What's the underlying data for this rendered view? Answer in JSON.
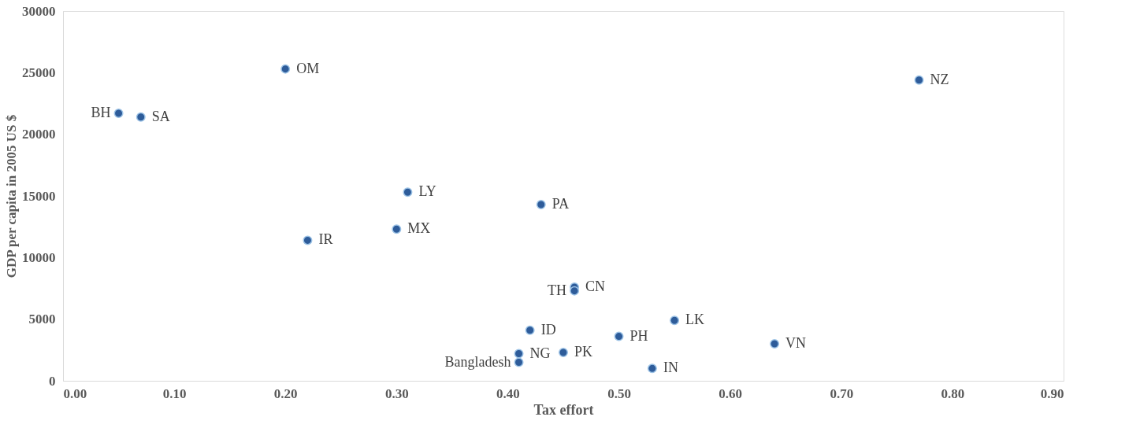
{
  "chart_data": {
    "type": "scatter",
    "xlabel": "Tax effort",
    "ylabel": "GDP per capita in 2005 US $",
    "x": [
      0.05,
      0.07,
      0.2,
      0.77,
      0.31,
      0.43,
      0.3,
      0.22,
      0.46,
      0.46,
      0.55,
      0.42,
      0.5,
      0.64,
      0.41,
      0.45,
      0.41,
      0.53
    ],
    "series": [
      {
        "color": "#2e5c9a",
        "values": [
          21700,
          21400,
          25300,
          24400,
          15300,
          14300,
          12300,
          11400,
          7600,
          7300,
          4900,
          4100,
          3600,
          3000,
          2200,
          2300,
          1500,
          1000
        ]
      }
    ],
    "marker": "circle",
    "grid": false,
    "xlim": [
      0,
      0.9
    ],
    "xticks": [
      {
        "value": 0,
        "label": "0.00"
      },
      {
        "value": 0.1,
        "label": "0.10"
      },
      {
        "value": 0.2,
        "label": "0.20"
      },
      {
        "value": 0.3,
        "label": "0.30"
      },
      {
        "value": 0.4,
        "label": "0.40"
      },
      {
        "value": 0.5,
        "label": "0.50"
      },
      {
        "value": 0.6,
        "label": "0.60"
      },
      {
        "value": 0.7,
        "label": "0.70"
      },
      {
        "value": 0.8,
        "label": "0.80"
      },
      {
        "value": 0.9,
        "label": "0.90"
      }
    ],
    "ylim": [
      0,
      30000
    ],
    "yticks": [
      0,
      5000,
      10000,
      15000,
      20000,
      25000,
      30000
    ],
    "annotations": [
      {
        "text": "BH",
        "x": 0.05,
        "y": 21700
      },
      {
        "text": "SA",
        "x": 0.07,
        "y": 21400
      },
      {
        "text": "OM",
        "x": 0.2,
        "y": 25300
      },
      {
        "text": "NZ",
        "x": 0.77,
        "y": 24400
      },
      {
        "text": "LY",
        "x": 0.31,
        "y": 15300
      },
      {
        "text": "PA",
        "x": 0.43,
        "y": 14300
      },
      {
        "text": "MX",
        "x": 0.3,
        "y": 12300
      },
      {
        "text": "IR",
        "x": 0.22,
        "y": 11400
      },
      {
        "text": "CN",
        "x": 0.46,
        "y": 7600
      },
      {
        "text": "TH",
        "x": 0.46,
        "y": 7300
      },
      {
        "text": "LK",
        "x": 0.55,
        "y": 4900
      },
      {
        "text": "ID",
        "x": 0.42,
        "y": 4100
      },
      {
        "text": "PH",
        "x": 0.5,
        "y": 3600
      },
      {
        "text": "VN",
        "x": 0.64,
        "y": 3000
      },
      {
        "text": "NG",
        "x": 0.41,
        "y": 2200
      },
      {
        "text": "PK",
        "x": 0.45,
        "y": 2300
      },
      {
        "text": "Bangladesh",
        "x": 0.41,
        "y": 1500
      },
      {
        "text": "IN",
        "x": 0.53,
        "y": 1000
      }
    ]
  }
}
